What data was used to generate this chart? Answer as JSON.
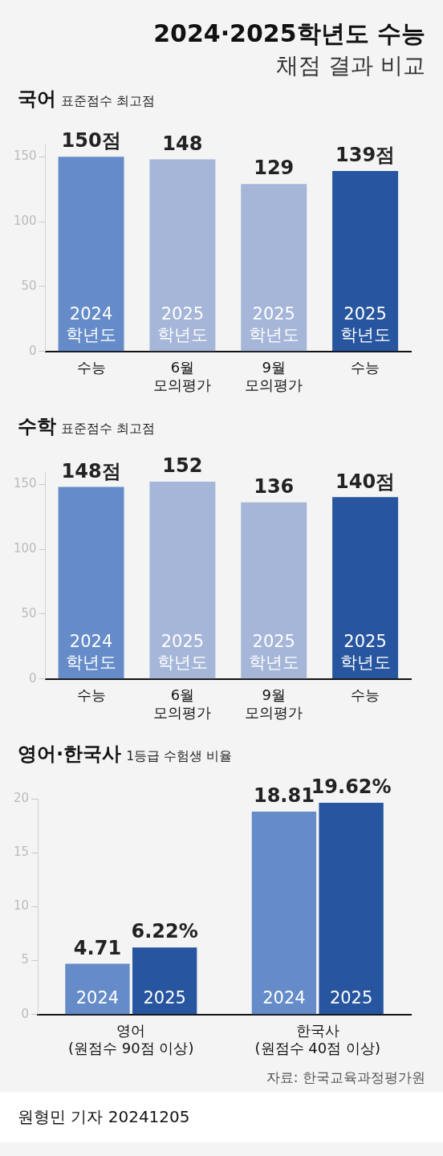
{
  "chart_data": [
    {
      "type": "other",
      "title": "2024·2025학년도 수능",
      "subtitle": "채점 결과 비교"
    },
    {
      "type": "bar",
      "title": "국어",
      "subtitle": "표준점수 최고점",
      "stacked": true,
      "categories": [
        "수능",
        "6월\n모의평가",
        "9월\n모의평가",
        "수능"
      ],
      "ylim": [
        0,
        160
      ],
      "yticks": [
        0,
        50,
        100,
        150
      ],
      "series": [
        {
          "name": "2024\n학년도",
          "color": "#658cc9",
          "values": [
            150,
            null,
            null,
            null
          ],
          "value_labels": [
            "150점",
            null,
            null,
            null
          ]
        },
        {
          "name": "2025\n학년도",
          "color": "#a5b6d8",
          "values": [
            null,
            148,
            null,
            null
          ],
          "value_labels": [
            null,
            "148",
            null,
            null
          ]
        },
        {
          "name": "2025\n학년도",
          "color": "#a5b6d8",
          "values": [
            null,
            null,
            129,
            null
          ],
          "value_labels": [
            null,
            null,
            "129",
            null
          ]
        },
        {
          "name": "2025\n학년도",
          "color": "#27559f",
          "values": [
            null,
            null,
            null,
            139
          ],
          "value_labels": [
            null,
            null,
            null,
            "139점"
          ]
        }
      ]
    },
    {
      "type": "bar",
      "title": "수학",
      "subtitle": "표준점수 최고점",
      "stacked": true,
      "categories": [
        "수능",
        "6월\n모의평가",
        "9월\n모의평가",
        "수능"
      ],
      "ylim": [
        0,
        160
      ],
      "yticks": [
        0,
        50,
        100,
        150
      ],
      "series": [
        {
          "name": "2024\n학년도",
          "color": "#658cc9",
          "values": [
            148,
            null,
            null,
            null
          ],
          "value_labels": [
            "148점",
            null,
            null,
            null
          ]
        },
        {
          "name": "2025\n학년도",
          "color": "#a5b6d8",
          "values": [
            null,
            152,
            null,
            null
          ],
          "value_labels": [
            null,
            "152",
            null,
            null
          ]
        },
        {
          "name": "2025\n학년도",
          "color": "#a5b6d8",
          "values": [
            null,
            null,
            136,
            null
          ],
          "value_labels": [
            null,
            null,
            "136",
            null
          ]
        },
        {
          "name": "2025\n학년도",
          "color": "#27559f",
          "values": [
            null,
            null,
            null,
            140
          ],
          "value_labels": [
            null,
            null,
            null,
            "140점"
          ]
        }
      ]
    },
    {
      "type": "bar",
      "title": "영어·한국사",
      "subtitle": "1등급 수험생 비율",
      "categories": [
        "영어\n(원점수 90점 이상)",
        "한국사\n(원점수 40점 이상)"
      ],
      "ylim": [
        0,
        20
      ],
      "yticks": [
        0,
        5,
        10,
        15,
        20
      ],
      "series": [
        {
          "name": "2024",
          "color": "#658cc9",
          "values": [
            4.71,
            18.81
          ],
          "value_labels": [
            "4.71",
            "18.81"
          ]
        },
        {
          "name": "2025",
          "color": "#27559f",
          "values": [
            6.22,
            19.62
          ],
          "value_labels": [
            "6.22%",
            "19.62%"
          ]
        }
      ],
      "annotations": [
        "자료: 한국교육과정평가원",
        "원형민 기자 20241205"
      ]
    }
  ]
}
